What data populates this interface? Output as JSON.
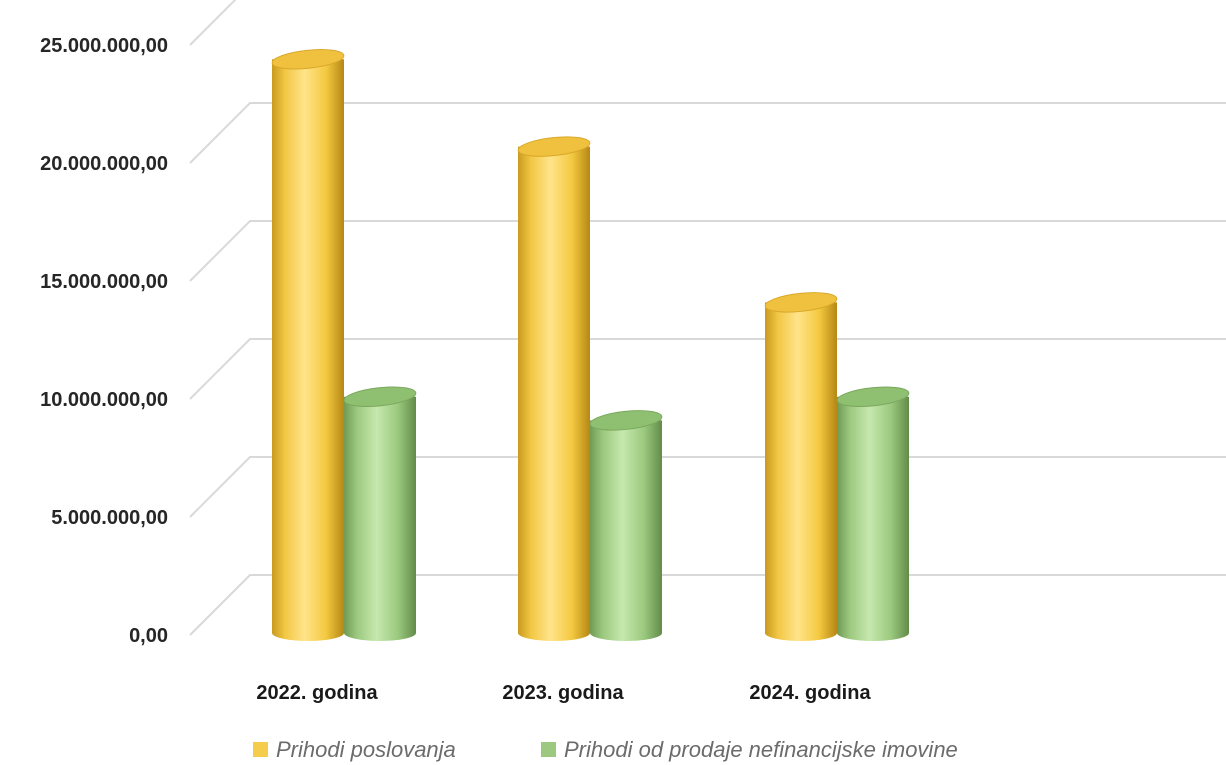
{
  "chart_data": {
    "type": "bar",
    "style": "3d-cylinder",
    "categories": [
      "2022. godina",
      "2023. godina",
      "2024. godina"
    ],
    "series": [
      {
        "name": "Prihodi poslovanja",
        "values": [
          22700000,
          19000000,
          12400000
        ],
        "color": "#f5cc4b"
      },
      {
        "name": "Prihodi od prodaje nefinancijske imovine",
        "values": [
          8400000,
          7400000,
          8400000
        ],
        "color": "#9cc97f"
      }
    ],
    "y_ticks": [
      {
        "value": 0,
        "label": "0,00"
      },
      {
        "value": 5000000,
        "label": "5.000.000,00"
      },
      {
        "value": 10000000,
        "label": "10.000.000,00"
      },
      {
        "value": 15000000,
        "label": "15.000.000,00"
      },
      {
        "value": 20000000,
        "label": "20.000.000,00"
      },
      {
        "value": 25000000,
        "label": "25.000.000,00"
      }
    ],
    "ylim": [
      0,
      25000000
    ],
    "grid": true,
    "legend_position": "bottom"
  }
}
